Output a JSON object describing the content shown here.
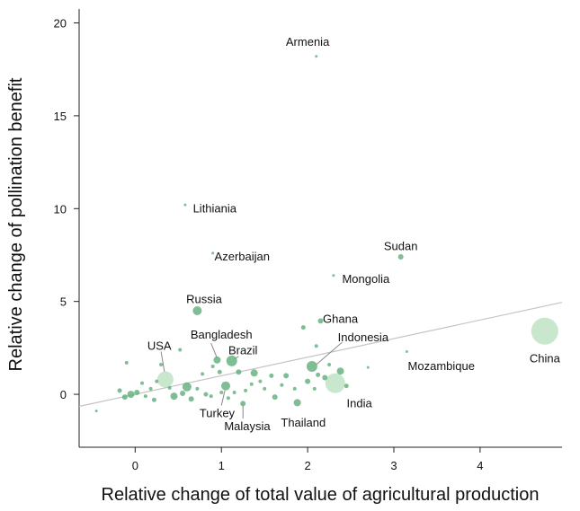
{
  "chart_data": {
    "type": "scatter",
    "xlabel": "Relative change of total value of agricultural production",
    "ylabel": "Relative change of pollination benefit",
    "xlim": [
      -0.65,
      4.95
    ],
    "ylim": [
      -2.85,
      20.75
    ],
    "x_ticks": [
      "0",
      "1",
      "2",
      "3",
      "4"
    ],
    "y_ticks": [
      "0",
      "5",
      "10",
      "15",
      "20"
    ],
    "x_tick_values": [
      0,
      1,
      2,
      3,
      4
    ],
    "y_tick_values": [
      0,
      5,
      10,
      15,
      20
    ],
    "trend_line": {
      "x": [
        -0.65,
        4.95
      ],
      "y": [
        -0.65,
        4.95
      ]
    },
    "colors": {
      "small_point": "#5fae7a",
      "large_point": "#bfe3c4",
      "trend_line": "#c4c4c4",
      "leader_line": "#888888"
    },
    "points": [
      {
        "x": 2.1,
        "y": 18.2,
        "r": 1.5,
        "label": "Armenia",
        "lx": 2.0,
        "ly": 19.0,
        "anchor": "middle"
      },
      {
        "x": 0.58,
        "y": 10.2,
        "r": 1.5,
        "label": "Lithiania",
        "lx": 0.67,
        "ly": 10.05,
        "anchor": "start"
      },
      {
        "x": 0.9,
        "y": 7.6,
        "r": 1.5,
        "label": "Azerbaijan",
        "lx": 0.92,
        "ly": 7.45,
        "anchor": "start"
      },
      {
        "x": 3.08,
        "y": 7.4,
        "r": 3,
        "label": "Sudan",
        "lx": 3.08,
        "ly": 8.0,
        "anchor": "middle"
      },
      {
        "x": 2.3,
        "y": 6.4,
        "r": 1.5,
        "label": "Mongolia",
        "lx": 2.4,
        "ly": 6.25,
        "anchor": "start"
      },
      {
        "x": 0.72,
        "y": 4.5,
        "r": 5,
        "label": "Russia",
        "lx": 0.8,
        "ly": 5.15,
        "anchor": "middle"
      },
      {
        "x": 2.15,
        "y": 3.95,
        "r": 3,
        "label": "Ghana",
        "lx": 2.38,
        "ly": 4.1,
        "anchor": "middle"
      },
      {
        "x": 0.95,
        "y": 1.85,
        "r": 4,
        "label": "Bangladesh",
        "lx": 1.0,
        "ly": 3.25,
        "anchor": "middle",
        "lead": [
          0.88,
          2.75,
          0.95,
          1.95
        ]
      },
      {
        "x": 2.05,
        "y": 1.5,
        "r": 6,
        "label": "Indonesia",
        "lx": 2.35,
        "ly": 3.1,
        "anchor": "start",
        "lead": [
          2.4,
          2.8,
          2.1,
          1.6
        ]
      },
      {
        "x": 1.12,
        "y": 1.8,
        "r": 6,
        "label": "Brazil",
        "lx": 1.25,
        "ly": 2.4,
        "anchor": "middle",
        "lead": [
          1.2,
          2.05,
          1.15,
          1.9
        ]
      },
      {
        "x": 0.35,
        "y": 0.8,
        "r": 9,
        "label": "USA",
        "lx": 0.28,
        "ly": 2.65,
        "anchor": "middle",
        "lead": [
          0.3,
          2.3,
          0.34,
          1.2
        ]
      },
      {
        "x": 4.75,
        "y": 3.4,
        "r": 15,
        "label": "China",
        "lx": 4.75,
        "ly": 1.95,
        "anchor": "middle"
      },
      {
        "x": 3.15,
        "y": 2.3,
        "r": 1.5,
        "label": "Mozambique",
        "lx": 3.55,
        "ly": 1.55,
        "anchor": "middle"
      },
      {
        "x": 2.32,
        "y": 0.6,
        "r": 11,
        "label": "India",
        "lx": 2.6,
        "ly": -0.45,
        "anchor": "middle"
      },
      {
        "x": 1.05,
        "y": 0.45,
        "r": 5,
        "label": "Turkey",
        "lx": 0.95,
        "ly": -1.0,
        "anchor": "middle",
        "lead": [
          1.0,
          -0.6,
          1.04,
          0.2
        ]
      },
      {
        "x": 1.88,
        "y": -0.45,
        "r": 4,
        "label": "Thailand",
        "lx": 1.95,
        "ly": -1.5,
        "anchor": "middle"
      },
      {
        "x": 1.25,
        "y": -0.5,
        "r": 3,
        "label": "Malaysia",
        "lx": 1.3,
        "ly": -1.7,
        "anchor": "middle",
        "lead": [
          1.25,
          -1.3,
          1.25,
          -0.6
        ]
      },
      {
        "x": -0.45,
        "y": -0.9,
        "r": 1.5
      },
      {
        "x": -0.18,
        "y": 0.2,
        "r": 2.5
      },
      {
        "x": -0.12,
        "y": -0.15,
        "r": 3
      },
      {
        "x": -0.1,
        "y": 1.7,
        "r": 2
      },
      {
        "x": -0.05,
        "y": 0.0,
        "r": 4
      },
      {
        "x": 0.02,
        "y": 0.1,
        "r": 3
      },
      {
        "x": 0.08,
        "y": 0.6,
        "r": 2
      },
      {
        "x": 0.12,
        "y": -0.1,
        "r": 2
      },
      {
        "x": 0.18,
        "y": 0.3,
        "r": 2
      },
      {
        "x": 0.22,
        "y": -0.3,
        "r": 2.5
      },
      {
        "x": 0.3,
        "y": 1.6,
        "r": 2
      },
      {
        "x": 0.45,
        "y": -0.1,
        "r": 4
      },
      {
        "x": 0.52,
        "y": 2.4,
        "r": 2
      },
      {
        "x": 0.55,
        "y": 0.05,
        "r": 3
      },
      {
        "x": 0.6,
        "y": 0.4,
        "r": 5
      },
      {
        "x": 0.65,
        "y": -0.25,
        "r": 3
      },
      {
        "x": 0.72,
        "y": 0.3,
        "r": 2
      },
      {
        "x": 0.78,
        "y": 1.1,
        "r": 2
      },
      {
        "x": 0.82,
        "y": 0.0,
        "r": 2.5
      },
      {
        "x": 0.88,
        "y": -0.1,
        "r": 2
      },
      {
        "x": 0.9,
        "y": 1.5,
        "r": 2
      },
      {
        "x": 0.98,
        "y": 1.2,
        "r": 2.5
      },
      {
        "x": 1.08,
        "y": -0.2,
        "r": 2
      },
      {
        "x": 1.15,
        "y": 0.1,
        "r": 2
      },
      {
        "x": 1.2,
        "y": 1.2,
        "r": 3
      },
      {
        "x": 1.28,
        "y": 0.2,
        "r": 2
      },
      {
        "x": 1.38,
        "y": 1.15,
        "r": 4
      },
      {
        "x": 1.45,
        "y": 0.7,
        "r": 2
      },
      {
        "x": 1.5,
        "y": 0.3,
        "r": 2
      },
      {
        "x": 1.58,
        "y": 1.0,
        "r": 2.5
      },
      {
        "x": 1.62,
        "y": -0.15,
        "r": 3
      },
      {
        "x": 1.7,
        "y": 0.5,
        "r": 2
      },
      {
        "x": 1.75,
        "y": 1.0,
        "r": 3
      },
      {
        "x": 1.85,
        "y": 0.3,
        "r": 2
      },
      {
        "x": 1.95,
        "y": 3.6,
        "r": 2.5
      },
      {
        "x": 2.0,
        "y": 0.7,
        "r": 3
      },
      {
        "x": 2.08,
        "y": 0.3,
        "r": 2
      },
      {
        "x": 2.1,
        "y": 2.6,
        "r": 2
      },
      {
        "x": 2.12,
        "y": 1.05,
        "r": 2.5
      },
      {
        "x": 2.2,
        "y": 0.9,
        "r": 3
      },
      {
        "x": 2.25,
        "y": 1.6,
        "r": 2
      },
      {
        "x": 2.38,
        "y": 1.25,
        "r": 4
      },
      {
        "x": 2.45,
        "y": 0.45,
        "r": 2.5
      },
      {
        "x": 2.7,
        "y": 1.45,
        "r": 1.5
      },
      {
        "x": 1.35,
        "y": 0.55,
        "r": 2
      },
      {
        "x": 0.4,
        "y": 0.35,
        "r": 2
      },
      {
        "x": 1.0,
        "y": 0.1,
        "r": 2
      },
      {
        "x": 0.25,
        "y": 0.7,
        "r": 2
      }
    ]
  }
}
